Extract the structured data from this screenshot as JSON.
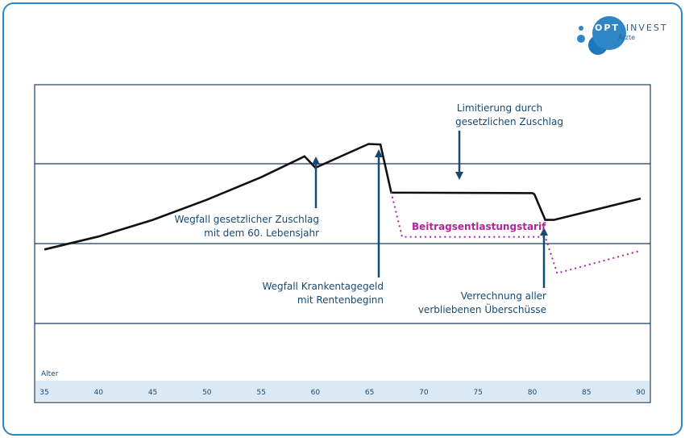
{
  "logo": {
    "word_opt": "OPT",
    "word_invest": "INVEST",
    "sub": "Ärzte",
    "colors": {
      "light": "#2f86c6",
      "mid": "#1f78bd",
      "dark": "#2b5f8c"
    }
  },
  "chart_data": {
    "type": "line",
    "xlabel": "Alter",
    "xlim": [
      35,
      90
    ],
    "ylim": [
      0,
      100
    ],
    "grid": "horizontal",
    "x_ticks": [
      35,
      40,
      45,
      50,
      55,
      60,
      65,
      70,
      75,
      80,
      85,
      90
    ],
    "series": [
      {
        "color": "#111111",
        "style": "solid",
        "points": [
          [
            35.0,
            30.5
          ],
          [
            40.0,
            36.0
          ],
          [
            45.0,
            43.0
          ],
          [
            50.0,
            51.5
          ],
          [
            55.0,
            61.0
          ],
          [
            59.0,
            69.8
          ],
          [
            60.0,
            65.0
          ],
          [
            64.9,
            75.0
          ],
          [
            66.0,
            74.8
          ],
          [
            67.0,
            54.5
          ],
          [
            80.0,
            54.3
          ],
          [
            80.2,
            53.8
          ],
          [
            81.2,
            43.0
          ],
          [
            82.0,
            43.0
          ],
          [
            90.0,
            52.0
          ]
        ]
      },
      {
        "name": "Beitragsentlastungstarif",
        "color": "#b5229a",
        "style": "dotted",
        "points": [
          [
            67.0,
            54.5
          ],
          [
            68.0,
            35.8
          ],
          [
            81.2,
            35.8
          ],
          [
            82.3,
            20.5
          ],
          [
            90.0,
            30.0
          ]
        ]
      }
    ],
    "annotations": [
      {
        "text_lines": [
          "Limitierung durch",
          "gesetzlichen Zuschlag"
        ],
        "arrow_x": 73.5,
        "arrow": "down"
      },
      {
        "text_lines": [
          "Wegfall gesetzlicher Zuschlag",
          "mit dem 60. Lebensjahr"
        ],
        "arrow_x": 60.0,
        "arrow": "up"
      },
      {
        "text_lines": [
          "Wegfall Krankentagegeld",
          "mit Rentenbeginn"
        ],
        "arrow_x": 65.9,
        "arrow": "up"
      },
      {
        "text_lines": [
          "Verrechnung aller",
          "verbliebenen Überschüsse"
        ],
        "arrow_x": 81.2,
        "arrow": "up"
      },
      {
        "text_lines": [
          "Beitragsentlastungstarif"
        ],
        "color": "#b5229a"
      }
    ],
    "colors": {
      "frame": "#2f86c6",
      "axis_band": "#dbe9f5",
      "grid": "#1a3d66",
      "annotation": "#174a73",
      "arrow": "#174a73"
    }
  }
}
